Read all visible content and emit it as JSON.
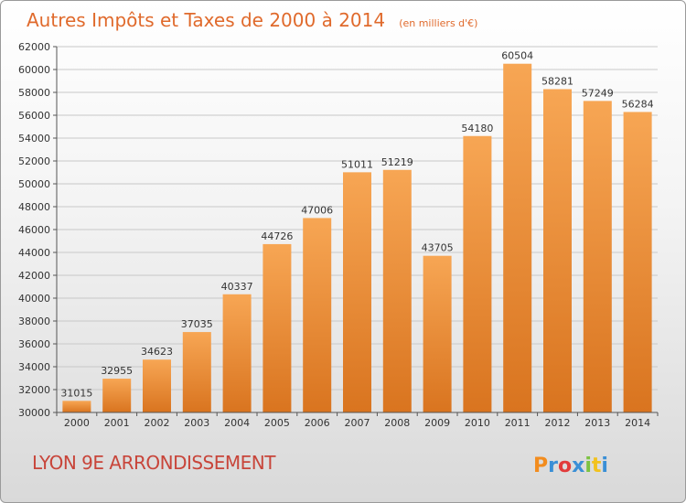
{
  "chart_data": {
    "type": "bar",
    "title": "Autres Impôts et Taxes de 2000 à 2014",
    "unit": "(en milliers d'€)",
    "categories": [
      "2000",
      "2001",
      "2002",
      "2003",
      "2004",
      "2005",
      "2006",
      "2007",
      "2008",
      "2009",
      "2010",
      "2011",
      "2012",
      "2013",
      "2014"
    ],
    "values": [
      31015,
      32955,
      34623,
      37035,
      40337,
      44726,
      47006,
      51011,
      51219,
      43705,
      54180,
      60504,
      58281,
      57249,
      56284
    ],
    "ylim": [
      30000,
      62000
    ],
    "yticks": [
      30000,
      32000,
      34000,
      36000,
      38000,
      40000,
      42000,
      44000,
      46000,
      48000,
      50000,
      52000,
      54000,
      56000,
      58000,
      60000,
      62000
    ],
    "xlabel": "",
    "ylabel": "",
    "grid": true
  },
  "location": "LYON 9E  ARRONDISSEMENT",
  "logo": {
    "letters": [
      "P",
      "r",
      "o",
      "x",
      "i",
      "t",
      "i"
    ],
    "colors": [
      "#f28c1e",
      "#3a8fd6",
      "#e23b3b",
      "#3a8fd6",
      "#7cc242",
      "#f2c21e",
      "#3a8fd6"
    ]
  },
  "colors": {
    "bar_light": "#f7a654",
    "bar_dark": "#d9741f",
    "grid": "#c8c8c8"
  }
}
